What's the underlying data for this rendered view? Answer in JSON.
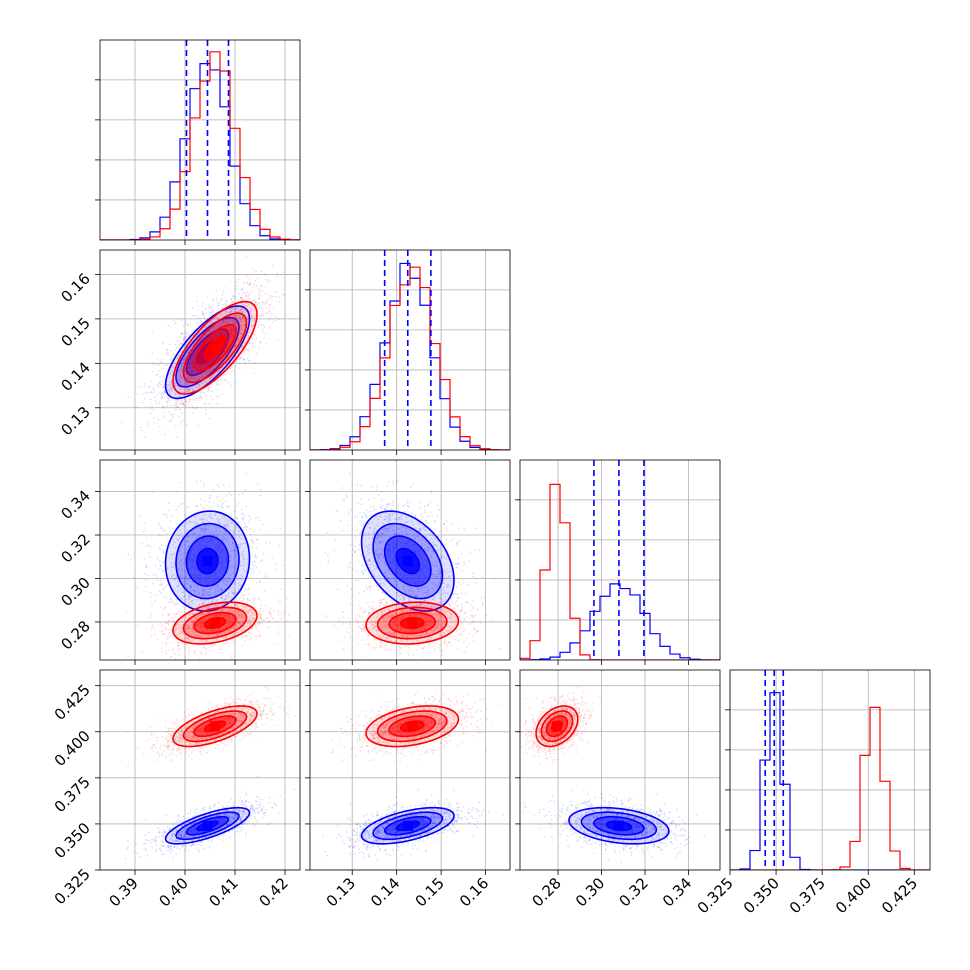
{
  "chart_data": {
    "type": "corner",
    "parameters": [
      {
        "ticks": [
          0.39,
          0.4,
          0.41,
          0.42
        ],
        "tick_labels": [
          "0.39",
          "0.40",
          "0.41",
          "0.42"
        ],
        "range": [
          0.383,
          0.423
        ]
      },
      {
        "ticks": [
          0.13,
          0.14,
          0.15,
          0.16
        ],
        "tick_labels": [
          "0.13",
          "0.14",
          "0.15",
          "0.16"
        ],
        "range": [
          0.1205,
          0.1655
        ]
      },
      {
        "ticks": [
          0.28,
          0.3,
          0.32,
          0.34
        ],
        "tick_labels": [
          "0.28",
          "0.30",
          "0.32",
          "0.34"
        ],
        "range": [
          0.2625,
          0.3545
        ]
      },
      {
        "ticks": [
          0.325,
          0.35,
          0.375,
          0.4,
          0.425
        ],
        "tick_labels": [
          "0.325",
          "0.350",
          "0.375",
          "0.400",
          "0.425"
        ],
        "range": [
          0.325,
          0.4335
        ]
      }
    ],
    "series": [
      {
        "color": "#0000ff",
        "means": [
          0.4045,
          0.1425,
          0.308,
          0.349
        ],
        "sigmas": [
          0.0042,
          0.0052,
          0.0115,
          0.0049
        ],
        "correlations": [
          [
            0,
            1,
            0.72
          ],
          [
            0,
            2,
            0.05
          ],
          [
            0,
            3,
            0.72
          ],
          [
            1,
            2,
            -0.38
          ],
          [
            1,
            3,
            0.55
          ],
          [
            2,
            3,
            -0.3
          ]
        ]
      },
      {
        "color": "#ff0000",
        "means": [
          0.406,
          0.1435,
          0.2795,
          0.403
        ],
        "sigmas": [
          0.0042,
          0.0052,
          0.0048,
          0.0055
        ],
        "correlations": [
          [
            0,
            1,
            0.72
          ],
          [
            0,
            2,
            0.35
          ],
          [
            0,
            3,
            0.62
          ],
          [
            1,
            2,
            0.1
          ],
          [
            1,
            3,
            0.35
          ],
          [
            2,
            3,
            0.35
          ]
        ]
      }
    ],
    "quantile_lines": {
      "color": "#0000ff",
      "values": [
        [
          0.4003,
          0.4045,
          0.4087
        ],
        [
          0.1373,
          0.1425,
          0.1477
        ],
        [
          0.2965,
          0.308,
          0.3195
        ],
        [
          0.3441,
          0.349,
          0.3539
        ]
      ]
    },
    "grid": true
  }
}
